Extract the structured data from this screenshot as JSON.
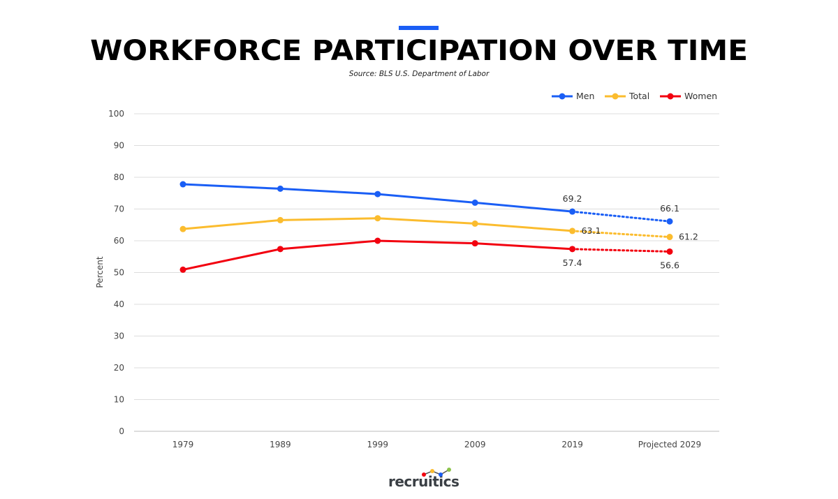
{
  "header": {
    "title": "WORKFORCE PARTICIPATION OVER TIME",
    "source": "Source: BLS U.S. Department of Labor",
    "accent_color": "#1a5ef5"
  },
  "chart_data": {
    "type": "line",
    "title": "WORKFORCE PARTICIPATION OVER TIME",
    "xlabel": "",
    "ylabel": "Percent",
    "categories": [
      "1979",
      "1989",
      "1999",
      "2009",
      "2019",
      "Projected 2029"
    ],
    "ylim": [
      0,
      100
    ],
    "yticks": [
      0,
      10,
      20,
      30,
      40,
      50,
      60,
      70,
      80,
      90,
      100
    ],
    "grid": true,
    "legend": "top-right",
    "projected_from_index": 4,
    "series": [
      {
        "name": "Men",
        "color": "#1a5ef5",
        "values": [
          77.8,
          76.4,
          74.7,
          72.0,
          69.2,
          66.1
        ],
        "labels": {
          "4": "69.2",
          "5": "66.1"
        },
        "label_pos": "above"
      },
      {
        "name": "Total",
        "color": "#fbbc2e",
        "values": [
          63.7,
          66.5,
          67.1,
          65.4,
          63.1,
          61.2
        ],
        "labels": {
          "4": "63.1",
          "5": "61.2"
        },
        "label_pos": "right"
      },
      {
        "name": "Women",
        "color": "#f2000f",
        "values": [
          50.9,
          57.4,
          60.0,
          59.2,
          57.4,
          56.6
        ],
        "labels": {
          "4": "57.4",
          "5": "56.6"
        },
        "label_pos": "below"
      }
    ]
  },
  "footer": {
    "logo_text": "recruitics",
    "logo_dot_colors": [
      "#f2000f",
      "#fbbc2e",
      "#1a5ef5",
      "#8bc34a"
    ]
  }
}
